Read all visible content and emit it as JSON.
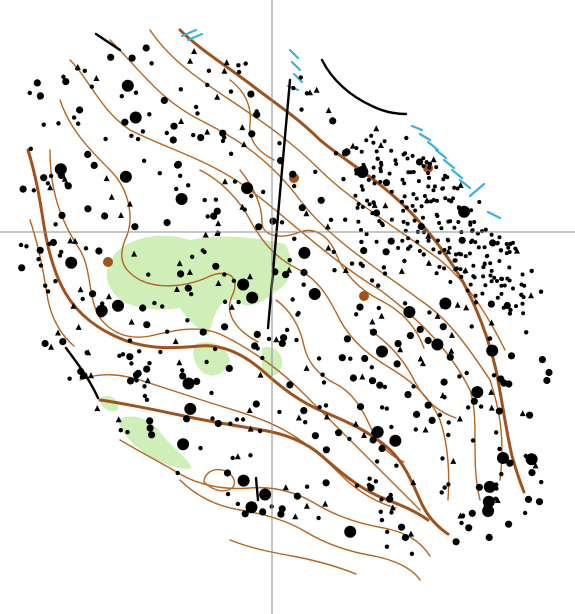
{
  "map": {
    "colors": {
      "background": "#ffffff",
      "contour": "#b5651d",
      "contour_index": "#a0521a",
      "vegetation": "#cfefb8",
      "water_hatch": "#38b2e0",
      "boulder": "#000000",
      "crosshair": "#8c8c8c"
    },
    "symbols": [
      "contour-line",
      "index-contour",
      "boulder",
      "boulder-field",
      "stony-ground",
      "open-land",
      "marsh-hatching",
      "cliff",
      "knoll",
      "crosshair"
    ]
  }
}
